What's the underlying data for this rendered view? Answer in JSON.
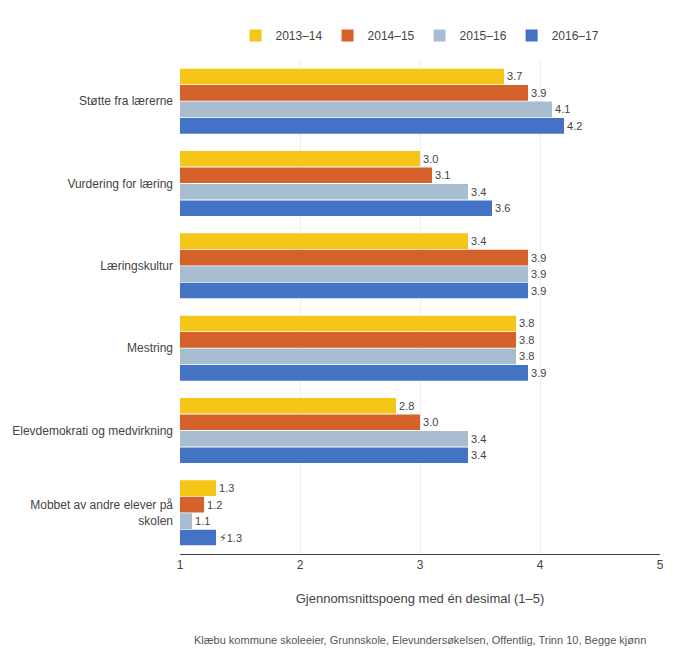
{
  "chart_data": {
    "type": "bar",
    "orientation": "horizontal",
    "categories": [
      "Støtte fra lærerne",
      "Vurdering for læring",
      "Læringskultur",
      "Mestring",
      "Elevdemokrati og medvirkning",
      "Mobbet av andre elever på\nskolen"
    ],
    "series": [
      {
        "name": "2013–14",
        "color": "#F5C518",
        "values": [
          3.7,
          3.0,
          3.4,
          3.8,
          2.8,
          1.3
        ],
        "value_labels": [
          "3.7",
          "3.0",
          "3.4",
          "3.8",
          "2.8",
          "1.3"
        ]
      },
      {
        "name": "2014–15",
        "color": "#D4622A",
        "values": [
          3.9,
          3.1,
          3.9,
          3.8,
          3.0,
          1.2
        ],
        "value_labels": [
          "3.9",
          "3.1",
          "3.9",
          "3.8",
          "3.0",
          "1.2"
        ]
      },
      {
        "name": "2015–16",
        "color": "#A8BDD0",
        "values": [
          4.1,
          3.4,
          3.9,
          3.8,
          3.4,
          1.1
        ],
        "value_labels": [
          "4.1",
          "3.4",
          "3.9",
          "3.8",
          "3.4",
          "1.1"
        ]
      },
      {
        "name": "2016–17",
        "color": "#4472C4",
        "values": [
          4.2,
          3.6,
          3.9,
          3.9,
          3.4,
          1.3
        ],
        "value_labels": [
          "4.2",
          "3.6",
          "3.9",
          "3.9",
          "3.4",
          "⚡1.3"
        ]
      }
    ],
    "xlabel": "Gjennomsnittspoeng med én desimal (1–5)",
    "xlim": [
      1,
      5
    ],
    "xticks": [
      1,
      2,
      3,
      4,
      5
    ],
    "grid": true,
    "data_labels": true,
    "legend": "top",
    "annotations": [
      {
        "text": "Klæbu kommune skoleeier, Grunnskole, Elevundersøkelsen, Offentlig, Trinn 10, Begge kjønn"
      }
    ]
  }
}
